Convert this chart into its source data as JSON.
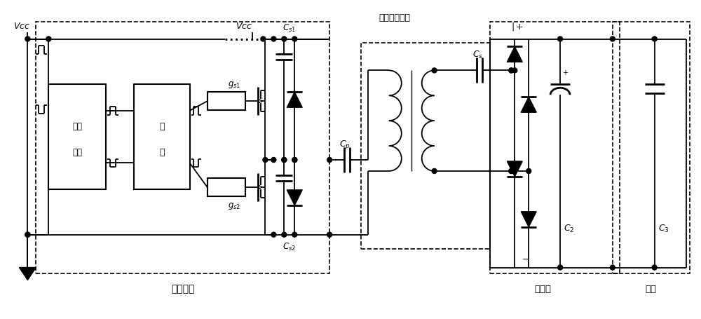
{
  "bg_color": "#ffffff",
  "line_color": "#000000",
  "labels": {
    "vcc_left": "Vcc",
    "vcc_right": "Vcc",
    "power_iso_line1": "电源",
    "power_iso_line2": "隔离",
    "driver_line1": "驱",
    "driver_line2": "动",
    "inverter": "逆变电路",
    "loose_transformer": "松耦合变压器",
    "rectifier": "整流桥",
    "load": "负载"
  },
  "fig_width": 10.0,
  "fig_height": 4.55,
  "dpi": 100
}
